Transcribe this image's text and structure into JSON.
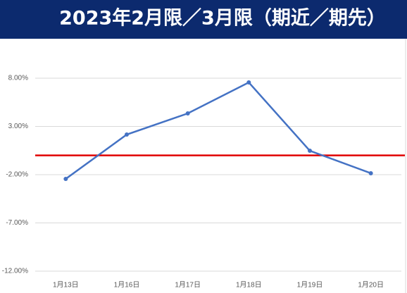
{
  "chart_data": {
    "type": "line",
    "title": "2023年2月限／3月限（期近／期先）",
    "categories": [
      "1月13日",
      "1月16日",
      "1月17日",
      "1月18日",
      "1月19日",
      "1月20日"
    ],
    "series": [
      {
        "color": "#4472c4",
        "values": [
          -2.44,
          2.16,
          4.35,
          7.56,
          0.48,
          -1.85
        ]
      }
    ],
    "reference_line": {
      "value": 0,
      "color": "#e00000"
    },
    "ylim": [
      -12,
      8
    ],
    "yticks": [
      {
        "value": -12,
        "label": "-12.00%"
      },
      {
        "value": -7,
        "label": "-7.00%"
      },
      {
        "value": -2,
        "label": "-2.00%"
      },
      {
        "value": 3,
        "label": "3.00%"
      },
      {
        "value": 8,
        "label": "8.00%"
      }
    ],
    "grid": true
  }
}
